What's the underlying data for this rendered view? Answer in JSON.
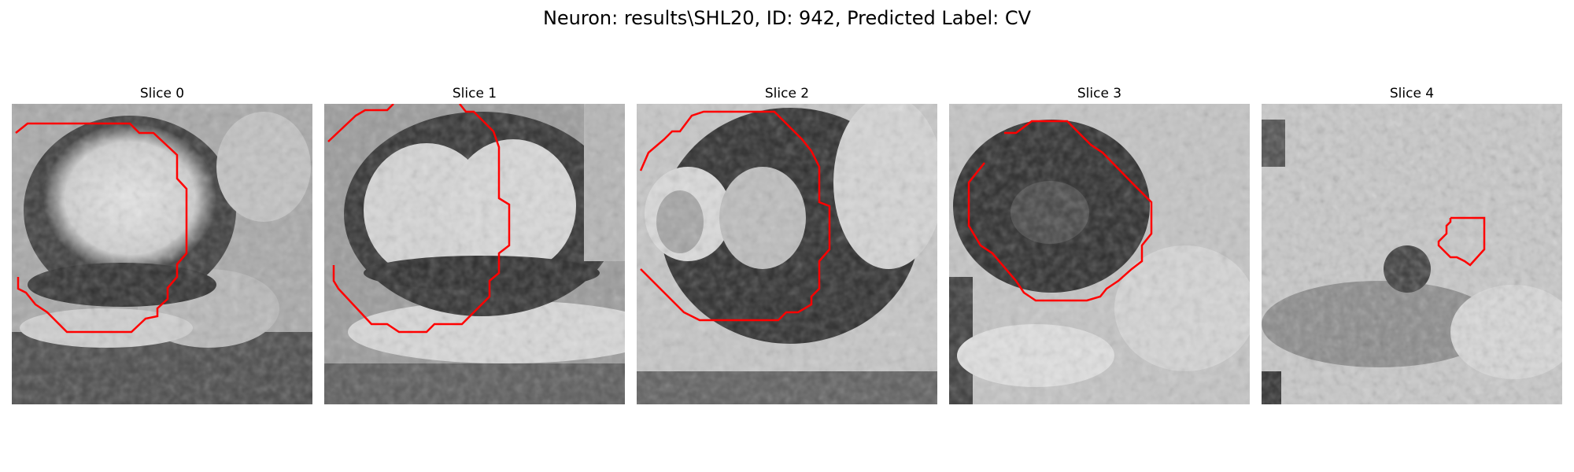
{
  "figure": {
    "title": "Neuron: results\\SHL20, ID: 942, Predicted Label: CV",
    "contour_color": "#ff0000",
    "panels": [
      {
        "title": "Slice 0",
        "image_content": "grayscale EM patch: bright rounded blob in upper-left bounded by dark membrane ring, dark band lower right",
        "contour": "open red outline tracing the left, top and right side of the bright blob"
      },
      {
        "title": "Slice 1",
        "image_content": "grayscale EM patch: bright lobed region bounded by a dark ring, bright band below",
        "contour": "red outline around the bright lobed region"
      },
      {
        "title": "Slice 2",
        "image_content": "grayscale EM patch: dark ring enclosing two bright lobes",
        "contour": "red outline around the dark ring"
      },
      {
        "title": "Slice 3",
        "image_content": "grayscale EM patch: large dark circular blob on a light background",
        "contour": "red octagonal outline around the dark blob"
      },
      {
        "title": "Slice 4",
        "image_content": "grayscale EM patch: mostly light texture with a small dark spot",
        "contour": "small red outline right of the dark spot"
      }
    ]
  }
}
